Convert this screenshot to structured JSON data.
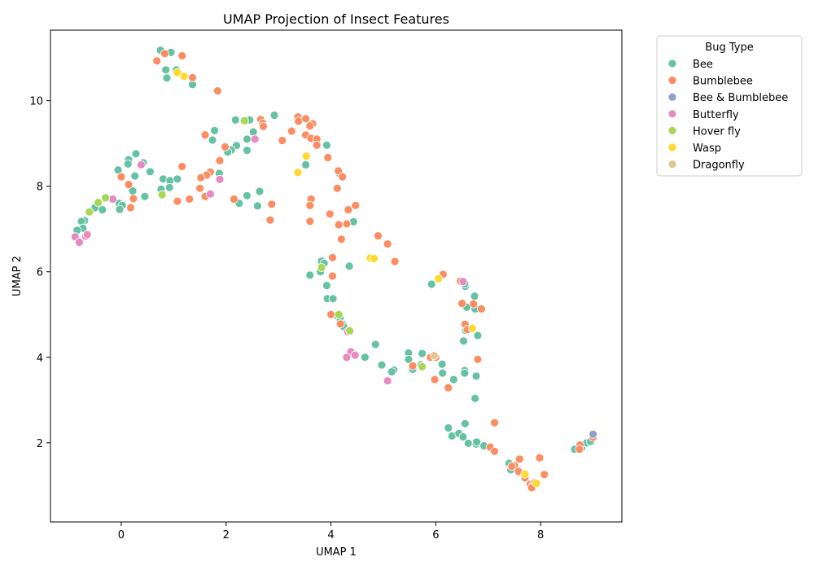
{
  "chart_data": {
    "type": "scatter",
    "title": "UMAP Projection of Insect Features",
    "xlabel": "UMAP 1",
    "ylabel": "UMAP 2",
    "xlim": [
      -1.35,
      9.55
    ],
    "ylim": [
      0.15,
      11.65
    ],
    "xticks": [
      0,
      2,
      4,
      6,
      8
    ],
    "yticks": [
      2,
      4,
      6,
      8,
      10
    ],
    "grid": false,
    "legend": {
      "title": "Bug Type",
      "placement": "outside-top-right",
      "entries": [
        "Bee",
        "Bumblebee",
        "Bee & Bumblebee",
        "Butterfly",
        "Hover fly",
        "Wasp",
        "Dragonfly"
      ]
    },
    "colors": {
      "Bee": "#66c2a5",
      "Bumblebee": "#fc8d62",
      "Bee & Bumblebee": "#8da0cb",
      "Butterfly": "#e78ac3",
      "Hover fly": "#a6d854",
      "Wasp": "#ffd92f",
      "Dragonfly": "#e5c494"
    },
    "series": [
      {
        "name": "Bee",
        "points": [
          [
            0.75,
            11.18
          ],
          [
            0.95,
            11.13
          ],
          [
            0.85,
            10.72
          ],
          [
            1.05,
            10.72
          ],
          [
            0.87,
            10.53
          ],
          [
            1.36,
            10.38
          ],
          [
            2.18,
            9.55
          ],
          [
            2.45,
            9.55
          ],
          [
            2.92,
            9.66
          ],
          [
            2.52,
            9.27
          ],
          [
            2.4,
            9.1
          ],
          [
            1.78,
            9.3
          ],
          [
            1.74,
            9.08
          ],
          [
            2.2,
            8.95
          ],
          [
            2.1,
            8.85
          ],
          [
            2.03,
            8.8
          ],
          [
            2.4,
            8.84
          ],
          [
            3.92,
            8.96
          ],
          [
            3.52,
            8.5
          ],
          [
            4.16,
            8.3
          ],
          [
            0.28,
            8.76
          ],
          [
            0.14,
            8.62
          ],
          [
            0.42,
            8.55
          ],
          [
            0.13,
            8.52
          ],
          [
            -0.06,
            8.38
          ],
          [
            0.55,
            8.34
          ],
          [
            1.87,
            8.3
          ],
          [
            0.8,
            8.17
          ],
          [
            0.93,
            8.13
          ],
          [
            1.07,
            8.17
          ],
          [
            0.26,
            8.24
          ],
          [
            0.76,
            7.93
          ],
          [
            0.92,
            7.97
          ],
          [
            2.64,
            7.88
          ],
          [
            0.22,
            7.89
          ],
          [
            0.45,
            7.76
          ],
          [
            2.4,
            7.78
          ],
          [
            2.25,
            7.6
          ],
          [
            2.6,
            7.54
          ],
          [
            -0.04,
            7.6
          ],
          [
            0.02,
            7.55
          ],
          [
            -0.03,
            7.46
          ],
          [
            -0.5,
            7.5
          ],
          [
            -0.36,
            7.45
          ],
          [
            -0.7,
            7.2
          ],
          [
            -0.76,
            7.18
          ],
          [
            -0.73,
            7.02
          ],
          [
            -0.84,
            6.97
          ],
          [
            4.43,
            7.17
          ],
          [
            3.82,
            6.25
          ],
          [
            3.87,
            6.2
          ],
          [
            4.35,
            6.13
          ],
          [
            3.8,
            6.0
          ],
          [
            3.6,
            5.92
          ],
          [
            3.92,
            5.68
          ],
          [
            3.93,
            5.37
          ],
          [
            4.04,
            5.37
          ],
          [
            4.12,
            4.97
          ],
          [
            4.18,
            4.88
          ],
          [
            4.22,
            4.78
          ],
          [
            4.24,
            4.72
          ],
          [
            4.85,
            4.3
          ],
          [
            4.65,
            4.0
          ],
          [
            4.97,
            3.82
          ],
          [
            5.2,
            3.7
          ],
          [
            5.16,
            3.66
          ],
          [
            5.56,
            3.72
          ],
          [
            5.48,
            4.1
          ],
          [
            5.48,
            3.95
          ],
          [
            5.74,
            4.09
          ],
          [
            5.72,
            3.82
          ],
          [
            6.12,
            3.84
          ],
          [
            6.13,
            3.63
          ],
          [
            6.34,
            3.48
          ],
          [
            5.92,
            5.71
          ],
          [
            6.56,
            5.66
          ],
          [
            6.55,
            5.72
          ],
          [
            6.59,
            5.17
          ],
          [
            6.75,
            5.13
          ],
          [
            6.74,
            5.43
          ],
          [
            6.8,
            4.51
          ],
          [
            6.57,
            4.63
          ],
          [
            6.53,
            4.38
          ],
          [
            6.55,
            3.69
          ],
          [
            6.55,
            3.63
          ],
          [
            6.77,
            3.56
          ],
          [
            6.75,
            3.04
          ],
          [
            6.56,
            2.45
          ],
          [
            6.24,
            2.35
          ],
          [
            6.31,
            2.16
          ],
          [
            6.44,
            2.22
          ],
          [
            6.52,
            2.14
          ],
          [
            6.62,
            1.99
          ],
          [
            6.77,
            1.97
          ],
          [
            6.78,
            2.02
          ],
          [
            6.92,
            1.93
          ],
          [
            7.4,
            1.52
          ],
          [
            7.43,
            1.37
          ],
          [
            8.65,
            1.85
          ],
          [
            8.78,
            1.88
          ],
          [
            8.88,
            2.0
          ],
          [
            8.95,
            2.03
          ]
        ]
      },
      {
        "name": "Bumblebee",
        "points": [
          [
            0.68,
            10.93
          ],
          [
            0.83,
            11.1
          ],
          [
            1.16,
            11.05
          ],
          [
            1.36,
            10.54
          ],
          [
            1.84,
            10.23
          ],
          [
            2.66,
            9.56
          ],
          [
            2.7,
            9.47
          ],
          [
            2.71,
            9.4
          ],
          [
            3.07,
            9.07
          ],
          [
            3.25,
            9.29
          ],
          [
            3.37,
            9.62
          ],
          [
            3.38,
            9.52
          ],
          [
            3.52,
            9.58
          ],
          [
            3.52,
            9.2
          ],
          [
            3.65,
            9.46
          ],
          [
            3.6,
            9.41
          ],
          [
            3.62,
            9.12
          ],
          [
            3.73,
            9.1
          ],
          [
            3.73,
            8.96
          ],
          [
            3.94,
            8.67
          ],
          [
            1.6,
            9.2
          ],
          [
            1.98,
            8.92
          ],
          [
            1.88,
            8.6
          ],
          [
            1.16,
            8.46
          ],
          [
            1.7,
            8.33
          ],
          [
            1.63,
            8.26
          ],
          [
            1.52,
            8.2
          ],
          [
            4.14,
            8.36
          ],
          [
            4.22,
            8.22
          ],
          [
            0.0,
            8.22
          ],
          [
            0.14,
            8.04
          ],
          [
            1.5,
            7.95
          ],
          [
            1.3,
            7.7
          ],
          [
            1.6,
            7.76
          ],
          [
            0.23,
            7.71
          ],
          [
            1.07,
            7.65
          ],
          [
            2.15,
            7.7
          ],
          [
            2.87,
            7.58
          ],
          [
            3.62,
            7.7
          ],
          [
            3.6,
            7.55
          ],
          [
            4.12,
            7.95
          ],
          [
            4.47,
            7.55
          ],
          [
            4.33,
            7.45
          ],
          [
            3.98,
            7.35
          ],
          [
            2.84,
            7.21
          ],
          [
            3.6,
            7.18
          ],
          [
            4.15,
            7.1
          ],
          [
            4.3,
            7.12
          ],
          [
            0.18,
            7.5
          ],
          [
            4.2,
            6.76
          ],
          [
            4.9,
            6.84
          ],
          [
            5.08,
            6.65
          ],
          [
            5.22,
            6.24
          ],
          [
            4.03,
            6.33
          ],
          [
            4.03,
            5.9
          ],
          [
            6.14,
            5.94
          ],
          [
            6.47,
            5.78
          ],
          [
            6.5,
            5.26
          ],
          [
            6.72,
            5.25
          ],
          [
            6.87,
            5.13
          ],
          [
            4.0,
            5.0
          ],
          [
            4.18,
            4.78
          ],
          [
            6.56,
            4.77
          ],
          [
            6.6,
            4.65
          ],
          [
            6.8,
            3.95
          ],
          [
            5.9,
            4.0
          ],
          [
            6.0,
            4.0
          ],
          [
            5.56,
            3.8
          ],
          [
            5.98,
            3.48
          ],
          [
            6.24,
            3.29
          ],
          [
            7.12,
            2.47
          ],
          [
            7.04,
            1.9
          ],
          [
            7.12,
            1.8
          ],
          [
            7.6,
            1.62
          ],
          [
            7.98,
            1.65
          ],
          [
            7.5,
            1.47
          ],
          [
            7.45,
            1.45
          ],
          [
            7.58,
            1.33
          ],
          [
            7.7,
            1.18
          ],
          [
            8.07,
            1.26
          ],
          [
            7.8,
            1.03
          ],
          [
            7.85,
            1.0
          ],
          [
            7.89,
            1.07
          ],
          [
            7.83,
            0.95
          ],
          [
            8.75,
            1.95
          ],
          [
            8.74,
            1.85
          ],
          [
            9.0,
            2.13
          ]
        ]
      },
      {
        "name": "Bee & Bumblebee",
        "points": [
          [
            9.0,
            2.2
          ]
        ]
      },
      {
        "name": "Butterfly",
        "points": [
          [
            2.55,
            9.1
          ],
          [
            0.38,
            8.5
          ],
          [
            1.88,
            8.16
          ],
          [
            1.7,
            7.82
          ],
          [
            -0.16,
            7.7
          ],
          [
            -0.88,
            6.82
          ],
          [
            -0.68,
            6.83
          ],
          [
            -0.65,
            6.87
          ],
          [
            -0.8,
            6.69
          ],
          [
            4.32,
            4.6
          ],
          [
            4.38,
            4.13
          ],
          [
            4.46,
            4.05
          ],
          [
            4.3,
            4.0
          ],
          [
            5.08,
            3.45
          ],
          [
            6.52,
            5.77
          ]
        ]
      },
      {
        "name": "Hover fly",
        "points": [
          [
            2.35,
            9.53
          ],
          [
            -0.3,
            7.73
          ],
          [
            -0.44,
            7.62
          ],
          [
            -0.61,
            7.4
          ],
          [
            0.78,
            7.8
          ],
          [
            3.82,
            6.1
          ],
          [
            4.15,
            5.0
          ],
          [
            4.36,
            4.62
          ],
          [
            5.74,
            3.78
          ]
        ]
      },
      {
        "name": "Wasp",
        "points": [
          [
            1.07,
            10.66
          ],
          [
            1.2,
            10.57
          ],
          [
            3.53,
            8.7
          ],
          [
            3.37,
            8.32
          ],
          [
            4.75,
            6.32
          ],
          [
            4.82,
            6.31
          ],
          [
            6.05,
            5.84
          ],
          [
            6.7,
            4.68
          ],
          [
            7.7,
            1.27
          ],
          [
            7.92,
            1.05
          ]
        ]
      },
      {
        "name": "Dragonfly",
        "points": [
          [
            5.97,
            4.04
          ]
        ]
      }
    ]
  }
}
